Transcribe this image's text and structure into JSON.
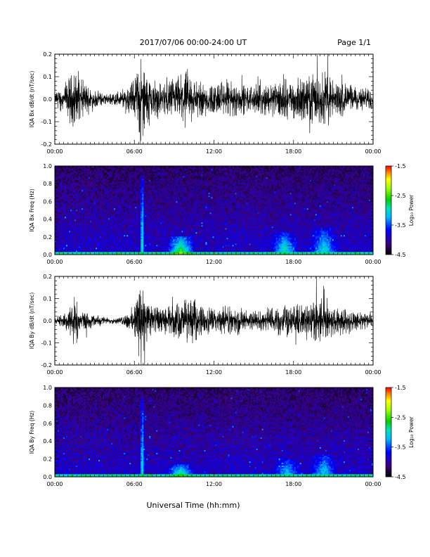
{
  "header": {
    "title": "2017/07/06  00:00-24:00 UT",
    "page": "Page 1/1"
  },
  "footer": {
    "xlabel": "Universal Time (hh:mm)"
  },
  "chart_data": [
    {
      "type": "line",
      "ylabel": "IQA Bx dB/dt (nT/sec)",
      "xlim": [
        "00:00",
        "24:00"
      ],
      "ylim": [
        -0.2,
        0.2
      ],
      "xticks": [
        "00:00",
        "06:00",
        "12:00",
        "18:00",
        "00:00"
      ],
      "yticks": [
        "-0.2",
        "-0.1",
        "0.0",
        "0.1",
        "0.2"
      ],
      "envelope_hours": [
        0,
        1,
        1.5,
        2,
        3,
        4,
        5,
        6,
        6.5,
        7,
        8,
        9,
        10,
        11,
        12,
        13,
        14,
        15,
        16,
        17,
        18,
        19,
        20,
        20.5,
        21,
        22,
        23,
        24
      ],
      "envelope_amplitude": [
        0.02,
        0.06,
        0.09,
        0.06,
        0.03,
        0.015,
        0.03,
        0.06,
        0.14,
        0.08,
        0.05,
        0.07,
        0.09,
        0.06,
        0.05,
        0.06,
        0.05,
        0.04,
        0.05,
        0.06,
        0.06,
        0.07,
        0.08,
        0.1,
        0.06,
        0.05,
        0.04,
        0.03
      ]
    },
    {
      "type": "heatmap",
      "ylabel": "IQA Bx Freq (Hz)",
      "xlim": [
        "00:00",
        "24:00"
      ],
      "ylim": [
        0,
        1
      ],
      "xticks": [
        "00:00",
        "06:00",
        "12:00",
        "18:00",
        "00:00"
      ],
      "yticks": [
        "0.0",
        "0.2",
        "0.4",
        "0.6",
        "0.8",
        "1.0"
      ],
      "colorbar": {
        "label": "Log₁₀ Power",
        "ticks": [
          "-1.5",
          "-2.5",
          "-3.5",
          "-4.5"
        ],
        "range": [
          -4.5,
          -1.5
        ]
      },
      "enhancements": [
        {
          "hour_center": 6.6,
          "freq_top": 0.9,
          "level": -2.6
        },
        {
          "hour_center": 9.5,
          "freq_top": 0.2,
          "level": -2.3
        },
        {
          "hour_center": 17.3,
          "freq_top": 0.25,
          "level": -2.8
        },
        {
          "hour_center": 20.3,
          "freq_top": 0.3,
          "level": -2.9
        }
      ]
    },
    {
      "type": "line",
      "ylabel": "IQA By dB/dt (nT/sec)",
      "xlim": [
        "00:00",
        "24:00"
      ],
      "ylim": [
        -0.2,
        0.2
      ],
      "xticks": [
        "00:00",
        "06:00",
        "12:00",
        "18:00",
        "00:00"
      ],
      "yticks": [
        "-0.2",
        "-0.1",
        "0.0",
        "0.1",
        "0.2"
      ],
      "envelope_hours": [
        0,
        1,
        1.5,
        2,
        3,
        4,
        5,
        6,
        6.5,
        7,
        8,
        9,
        10,
        11,
        12,
        13,
        14,
        15,
        16,
        17,
        18,
        19,
        20,
        20.5,
        21,
        22,
        23,
        24
      ],
      "envelope_amplitude": [
        0.01,
        0.03,
        0.09,
        0.03,
        0.02,
        0.01,
        0.01,
        0.05,
        0.15,
        0.06,
        0.04,
        0.05,
        0.08,
        0.05,
        0.04,
        0.05,
        0.04,
        0.03,
        0.04,
        0.05,
        0.05,
        0.06,
        0.07,
        0.07,
        0.05,
        0.04,
        0.03,
        0.02
      ]
    },
    {
      "type": "heatmap",
      "ylabel": "IQA By Freq (Hz)",
      "xlim": [
        "00:00",
        "24:00"
      ],
      "ylim": [
        0,
        1
      ],
      "xticks": [
        "00:00",
        "06:00",
        "12:00",
        "18:00",
        "00:00"
      ],
      "yticks": [
        "0.0",
        "0.2",
        "0.4",
        "0.6",
        "0.8",
        "1.0"
      ],
      "colorbar": {
        "label": "Log₁₀ Power",
        "ticks": [
          "-1.5",
          "-2.5",
          "-3.5",
          "-4.5"
        ],
        "range": [
          -4.5,
          -1.5
        ]
      },
      "enhancements": [
        {
          "hour_center": 6.6,
          "freq_top": 0.9,
          "level": -2.7
        },
        {
          "hour_center": 9.5,
          "freq_top": 0.15,
          "level": -2.6
        },
        {
          "hour_center": 17.5,
          "freq_top": 0.2,
          "level": -3.0
        },
        {
          "hour_center": 20.3,
          "freq_top": 0.25,
          "level": -3.0
        }
      ]
    }
  ]
}
